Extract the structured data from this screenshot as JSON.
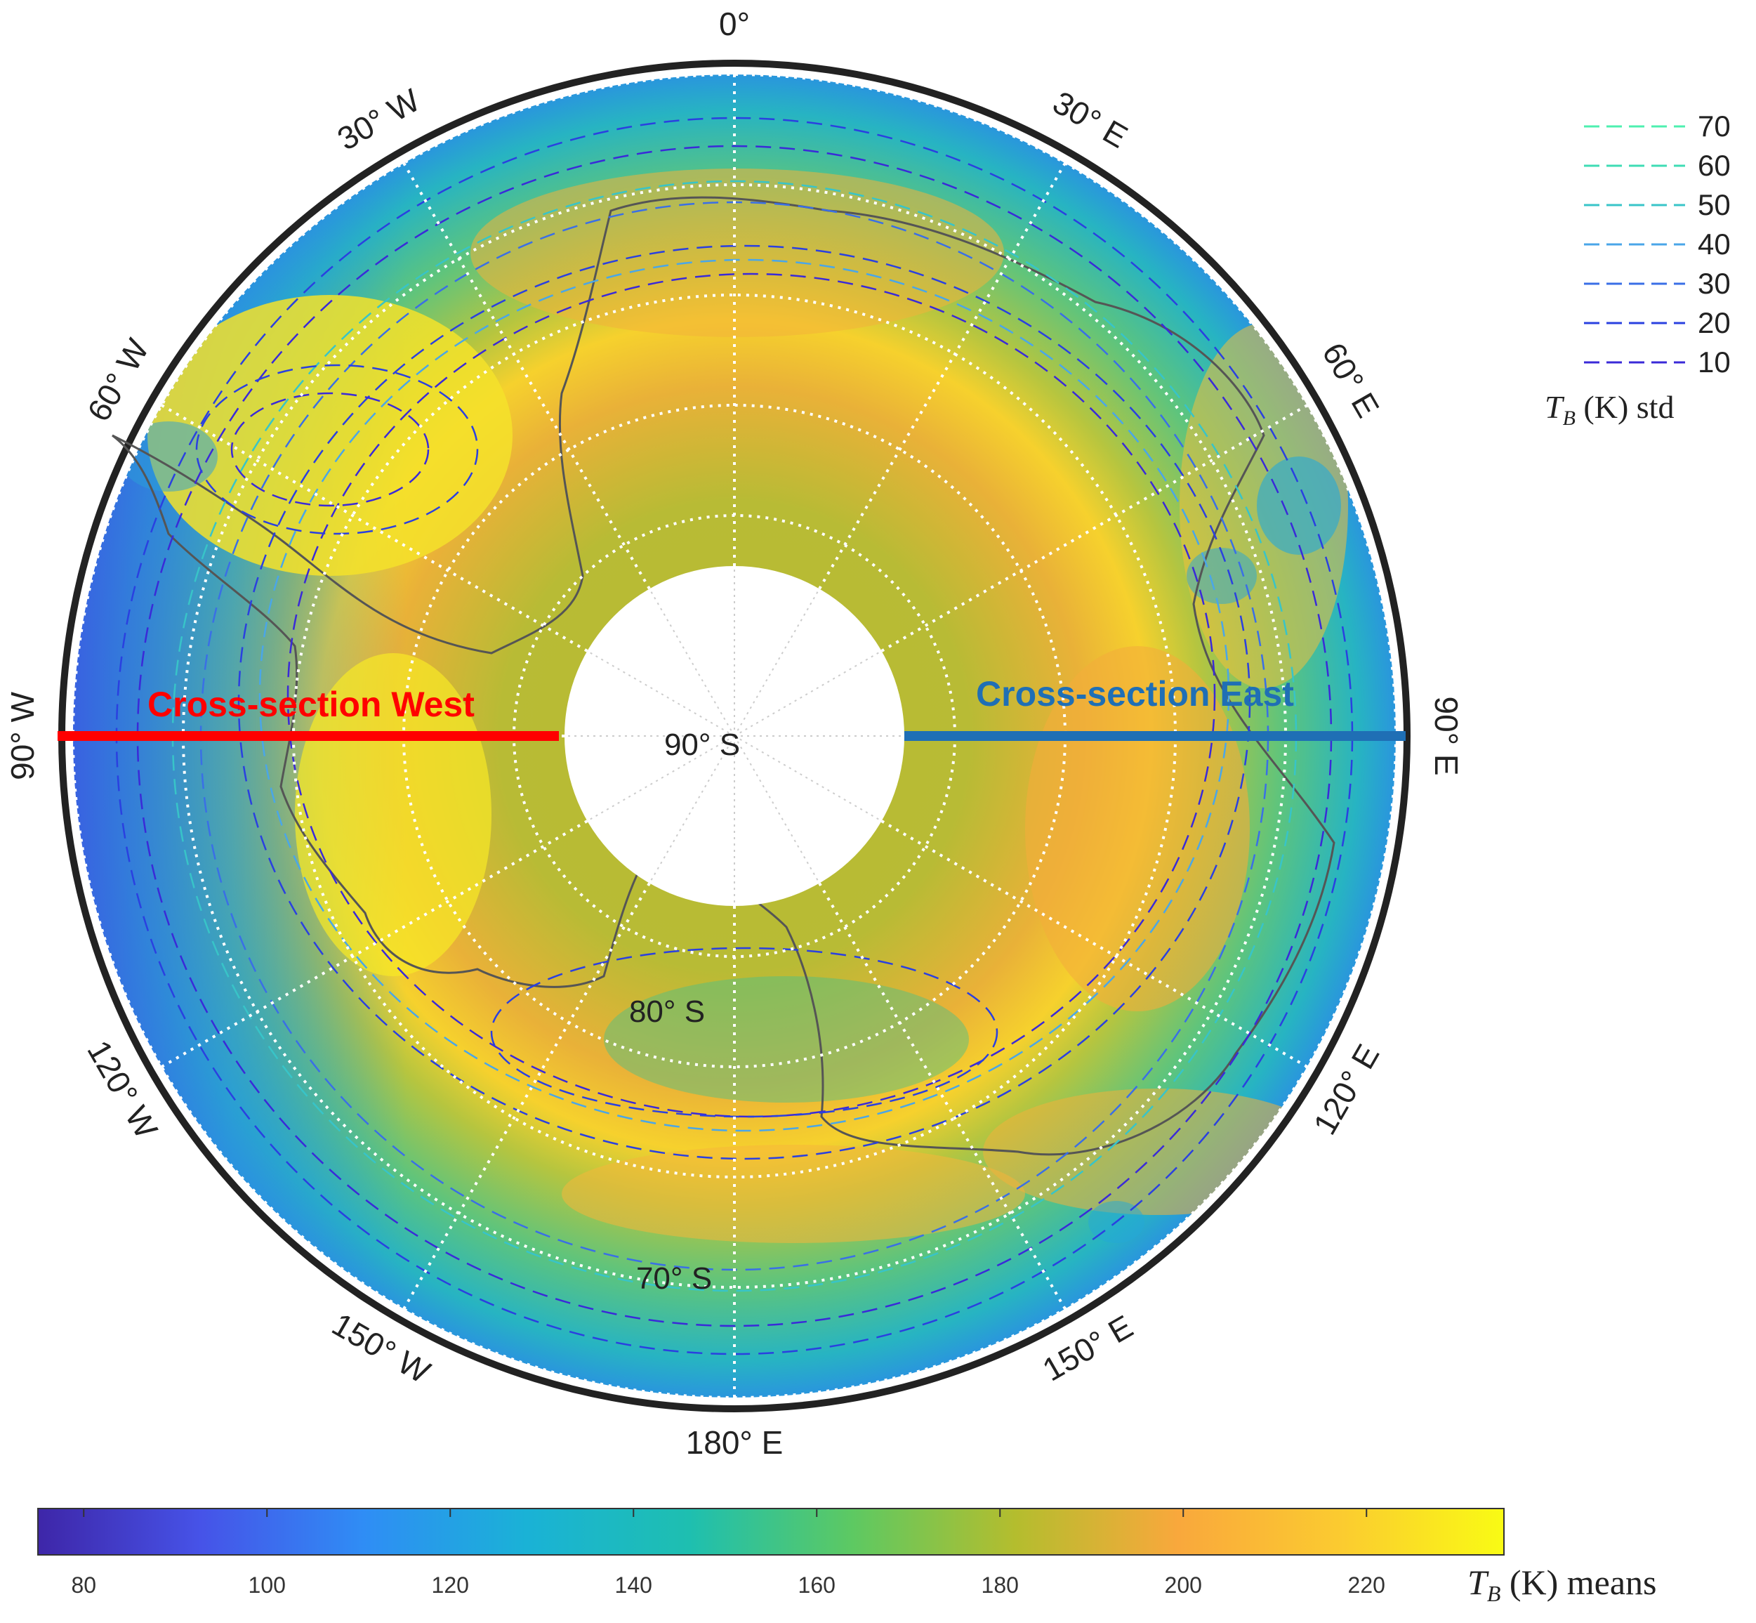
{
  "map": {
    "center_label": "90° S",
    "lat_labels": [
      {
        "text": "80° S",
        "lat": 80
      },
      {
        "text": "70° S",
        "lat": 70
      }
    ],
    "lat_circles": [
      85,
      80,
      75,
      70,
      65,
      60
    ],
    "lon_labels": [
      {
        "text": "0°",
        "lon": 0
      },
      {
        "text": "30° E",
        "lon": 30
      },
      {
        "text": "60° E",
        "lon": 60
      },
      {
        "text": "90° E",
        "lon": 90
      },
      {
        "text": "120° E",
        "lon": 120
      },
      {
        "text": "150° E",
        "lon": 150
      },
      {
        "text": "180° E",
        "lon": 180
      },
      {
        "text": "150° W",
        "lon": -150
      },
      {
        "text": "120° W",
        "lon": -120
      },
      {
        "text": "90° W",
        "lon": -90
      },
      {
        "text": "60° W",
        "lon": -60
      },
      {
        "text": "30° W",
        "lon": -30
      }
    ],
    "cross_sections": [
      {
        "label": "Cross-section West",
        "color": "#ff0000",
        "side": "west"
      },
      {
        "label": "Cross-section East",
        "color": "#1f6fb5",
        "side": "east"
      }
    ]
  },
  "std_legend": {
    "title": "T_B (K) std",
    "items": [
      {
        "label": "70",
        "color": "#4ef0b0"
      },
      {
        "label": "60",
        "color": "#3fdcb4"
      },
      {
        "label": "50",
        "color": "#38c4c8"
      },
      {
        "label": "40",
        "color": "#4aa6e8"
      },
      {
        "label": "30",
        "color": "#3a6fe6"
      },
      {
        "label": "20",
        "color": "#2a40e0"
      },
      {
        "label": "10",
        "color": "#3a2ad8"
      }
    ]
  },
  "colorbar": {
    "title": "T_B (K) means",
    "min": 75,
    "max": 235,
    "ticks": [
      80,
      100,
      120,
      140,
      160,
      180,
      200,
      220
    ],
    "colors": [
      "#3e26a8",
      "#4653e8",
      "#2f8df5",
      "#1ab2d6",
      "#1ebfb0",
      "#5dc962",
      "#b4bd2e",
      "#f9a83c",
      "#fbcb30",
      "#f9fb14"
    ]
  }
}
